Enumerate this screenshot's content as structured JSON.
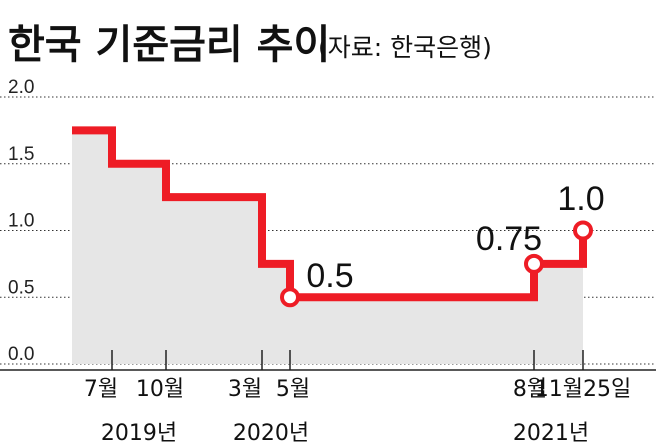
{
  "title": "한국 기준금리 추이",
  "source": "(자료: 한국은행)",
  "colors": {
    "line": "#ee1c25",
    "area": "#e6e6e6",
    "grid": "#333333",
    "text": "#111111"
  },
  "chart_data": {
    "type": "line",
    "title": "한국 기준금리 추이",
    "ylim": [
      0,
      2.0
    ],
    "yticks": [
      "0.0",
      "0.5",
      "1.0",
      "1.5",
      "2.0"
    ],
    "grid": "horizontal dotted",
    "x_labels": [
      "7월",
      "10월",
      "3월",
      "5월",
      "8월",
      "11월25일"
    ],
    "year_labels": [
      "2019년",
      "2020년",
      "2021년"
    ],
    "series": [
      {
        "points": [
          {
            "x": "2019-01",
            "y": 1.75
          },
          {
            "x": "2019-07",
            "y": 1.5
          },
          {
            "x": "2019-10",
            "y": 1.25
          },
          {
            "x": "2020-03",
            "y": 0.75
          },
          {
            "x": "2020-05",
            "y": 0.5
          },
          {
            "x": "2021-08",
            "y": 0.75
          },
          {
            "x": "2021-11-25",
            "y": 1.0
          }
        ]
      }
    ],
    "data_labels": [
      "0.5",
      "0.75",
      "1.0"
    ]
  }
}
